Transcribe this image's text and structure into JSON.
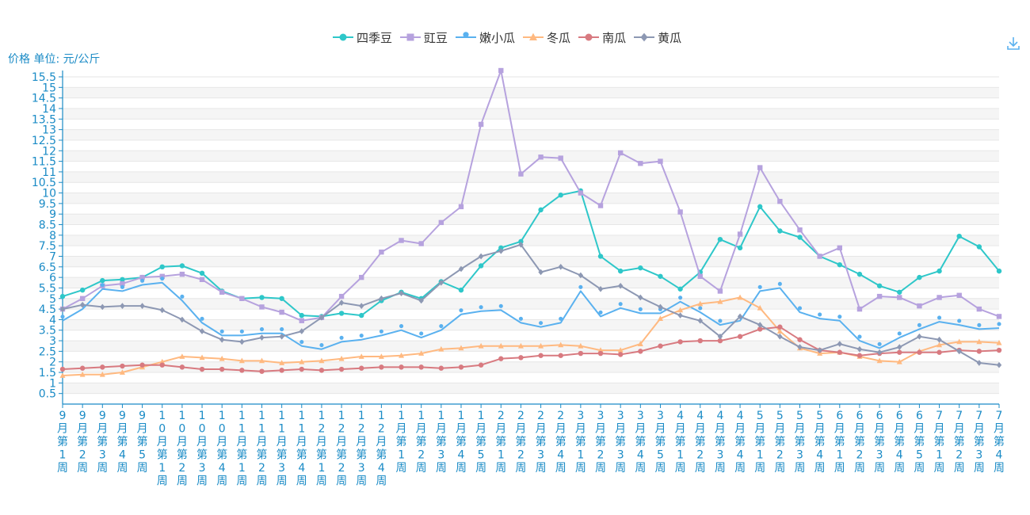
{
  "unit_label": "价格 单位: 元/公斤",
  "toolbox": {
    "save_icon": "download-icon"
  },
  "chart_data": {
    "type": "line",
    "categories": [
      "9月第1周",
      "9月第2周",
      "9月第3周",
      "9月第4周",
      "9月第5周",
      "10月第1周",
      "10月第2周",
      "10月第3周",
      "10月第4周",
      "11月第1周",
      "11月第2周",
      "11月第3周",
      "11月第4周",
      "12月第1周",
      "12月第2周",
      "12月第3周",
      "12月第4周",
      "1月第1周",
      "1月第2周",
      "1月第3周",
      "1月第4周",
      "1月第5周",
      "2月第1周",
      "2月第2周",
      "2月第3周",
      "2月第4周",
      "3月第1周",
      "3月第2周",
      "3月第3周",
      "3月第4周",
      "3月第5周",
      "4月第1周",
      "4月第2周",
      "4月第3周",
      "4月第4周",
      "5月第1周",
      "5月第2周",
      "5月第3周",
      "5月第4周",
      "6月第1周",
      "6月第2周",
      "6月第3周",
      "6月第4周",
      "6月第5周",
      "7月第1周",
      "7月第2周",
      "7月第3周",
      "7月第4周"
    ],
    "xlabels": [
      [
        "9",
        "月",
        "第",
        "1",
        "周"
      ],
      [
        "9",
        "月",
        "第",
        "2",
        "周"
      ],
      [
        "9",
        "月",
        "第",
        "3",
        "周"
      ],
      [
        "9",
        "月",
        "第",
        "4",
        "周"
      ],
      [
        "9",
        "月",
        "第",
        "5",
        "周"
      ],
      [
        "1",
        "0",
        "月",
        "第",
        "1",
        "周"
      ],
      [
        "1",
        "0",
        "月",
        "第",
        "2",
        "周"
      ],
      [
        "1",
        "0",
        "月",
        "第",
        "3",
        "周"
      ],
      [
        "1",
        "0",
        "月",
        "第",
        "4",
        "周"
      ],
      [
        "1",
        "1",
        "月",
        "第",
        "1",
        "周"
      ],
      [
        "1",
        "1",
        "月",
        "第",
        "2",
        "周"
      ],
      [
        "1",
        "1",
        "月",
        "第",
        "3",
        "周"
      ],
      [
        "1",
        "1",
        "月",
        "第",
        "4",
        "周"
      ],
      [
        "1",
        "2",
        "月",
        "第",
        "1",
        "周"
      ],
      [
        "1",
        "2",
        "月",
        "第",
        "2",
        "周"
      ],
      [
        "1",
        "2",
        "月",
        "第",
        "3",
        "周"
      ],
      [
        "1",
        "2",
        "月",
        "第",
        "4",
        "周"
      ],
      [
        "1",
        "月",
        "第",
        "1",
        "周"
      ],
      [
        "1",
        "月",
        "第",
        "2",
        "周"
      ],
      [
        "1",
        "月",
        "第",
        "3",
        "周"
      ],
      [
        "1",
        "月",
        "第",
        "4",
        "周"
      ],
      [
        "1",
        "月",
        "第",
        "5",
        "周"
      ],
      [
        "2",
        "月",
        "第",
        "1",
        "周"
      ],
      [
        "2",
        "月",
        "第",
        "2",
        "周"
      ],
      [
        "2",
        "月",
        "第",
        "3",
        "周"
      ],
      [
        "2",
        "月",
        "第",
        "4",
        "周"
      ],
      [
        "3",
        "月",
        "第",
        "1",
        "周"
      ],
      [
        "3",
        "月",
        "第",
        "2",
        "周"
      ],
      [
        "3",
        "月",
        "第",
        "3",
        "周"
      ],
      [
        "3",
        "月",
        "第",
        "4",
        "周"
      ],
      [
        "3",
        "月",
        "第",
        "5",
        "周"
      ],
      [
        "4",
        "月",
        "第",
        "1",
        "周"
      ],
      [
        "4",
        "月",
        "第",
        "2",
        "周"
      ],
      [
        "4",
        "月",
        "第",
        "3",
        "周"
      ],
      [
        "4",
        "月",
        "第",
        "4",
        "周"
      ],
      [
        "5",
        "月",
        "第",
        "1",
        "周"
      ],
      [
        "5",
        "月",
        "第",
        "2",
        "周"
      ],
      [
        "5",
        "月",
        "第",
        "3",
        "周"
      ],
      [
        "5",
        "月",
        "第",
        "4",
        "周"
      ],
      [
        "6",
        "月",
        "第",
        "1",
        "周"
      ],
      [
        "6",
        "月",
        "第",
        "2",
        "周"
      ],
      [
        "6",
        "月",
        "第",
        "3",
        "周"
      ],
      [
        "6",
        "月",
        "第",
        "4",
        "周"
      ],
      [
        "6",
        "月",
        "第",
        "5",
        "周"
      ],
      [
        "7",
        "月",
        "第",
        "1",
        "周"
      ],
      [
        "7",
        "月",
        "第",
        "2",
        "周"
      ],
      [
        "7",
        "月",
        "第",
        "3",
        "周"
      ],
      [
        "7",
        "月",
        "第",
        "4",
        "周"
      ]
    ],
    "ylim": [
      0,
      15.5
    ],
    "yticks": [
      "0.5",
      "1",
      "1.5",
      "2",
      "2.5",
      "3",
      "3.5",
      "4",
      "4.5",
      "5",
      "5.5",
      "6",
      "6.5",
      "7",
      "7.5",
      "8",
      "8.5",
      "9",
      "9.5",
      "10",
      "10.5",
      "11",
      "11.5",
      "12",
      "12.5",
      "13",
      "13.5",
      "14",
      "14.5",
      "15",
      "15.5"
    ],
    "grid": true,
    "legend_position": "top",
    "series": [
      {
        "name": "四季豆",
        "color": "#2ec7c9",
        "symbol": "circle",
        "values": [
          5.1,
          5.4,
          5.85,
          5.9,
          6.0,
          6.5,
          6.55,
          6.2,
          5.35,
          5.0,
          5.05,
          5.0,
          4.2,
          4.15,
          4.3,
          4.2,
          4.9,
          5.3,
          5.0,
          5.8,
          5.4,
          6.55,
          7.4,
          7.7,
          9.2,
          9.9,
          10.1,
          7.0,
          6.3,
          6.45,
          6.05,
          5.45,
          6.25,
          7.8,
          7.4,
          9.35,
          8.2,
          7.9,
          7.0,
          6.6,
          6.15,
          5.6,
          5.3,
          6.0,
          6.3,
          7.95,
          7.45,
          6.3
        ]
      },
      {
        "name": "豇豆",
        "color": "#b6a2de",
        "symbol": "rect",
        "values": [
          4.5,
          5.0,
          5.6,
          5.7,
          6.0,
          6.05,
          6.15,
          5.9,
          5.3,
          5.0,
          4.6,
          4.35,
          3.95,
          4.1,
          5.1,
          6.0,
          7.2,
          7.75,
          7.6,
          8.6,
          9.35,
          13.25,
          15.8,
          10.9,
          11.7,
          11.65,
          10.0,
          9.4,
          11.9,
          11.4,
          11.5,
          9.1,
          6.05,
          5.35,
          8.05,
          11.2,
          9.6,
          8.25,
          7.0,
          7.4,
          4.5,
          5.1,
          5.05,
          4.65,
          5.05,
          5.15,
          4.5,
          4.15
        ]
      },
      {
        "name": "嫩小瓜",
        "color": "#5ab1ef",
        "symbol": "pin",
        "values": [
          3.95,
          4.5,
          5.45,
          5.35,
          5.65,
          5.75,
          4.9,
          3.85,
          3.25,
          3.25,
          3.35,
          3.35,
          2.75,
          2.6,
          2.95,
          3.05,
          3.25,
          3.5,
          3.15,
          3.5,
          4.25,
          4.4,
          4.45,
          3.85,
          3.65,
          3.85,
          5.35,
          4.15,
          4.55,
          4.3,
          4.3,
          4.85,
          4.35,
          3.75,
          3.95,
          5.35,
          5.5,
          4.35,
          4.05,
          3.95,
          3.0,
          2.65,
          3.15,
          3.55,
          3.9,
          3.75,
          3.55,
          3.6
        ]
      },
      {
        "name": "冬瓜",
        "color": "#ffb980",
        "symbol": "triangle",
        "values": [
          1.35,
          1.4,
          1.4,
          1.5,
          1.75,
          2.0,
          2.25,
          2.2,
          2.15,
          2.05,
          2.05,
          1.95,
          2.0,
          2.05,
          2.15,
          2.25,
          2.25,
          2.3,
          2.4,
          2.6,
          2.65,
          2.75,
          2.75,
          2.75,
          2.75,
          2.8,
          2.75,
          2.55,
          2.55,
          2.85,
          4.05,
          4.45,
          4.75,
          4.85,
          5.05,
          4.55,
          3.45,
          2.65,
          2.4,
          2.45,
          2.25,
          2.05,
          2.0,
          2.5,
          2.8,
          2.95,
          2.95,
          2.9
        ]
      },
      {
        "name": "南瓜",
        "color": "#d87a80",
        "symbol": "circle",
        "values": [
          1.65,
          1.7,
          1.75,
          1.8,
          1.85,
          1.85,
          1.75,
          1.65,
          1.65,
          1.6,
          1.55,
          1.6,
          1.65,
          1.6,
          1.65,
          1.7,
          1.75,
          1.75,
          1.75,
          1.7,
          1.75,
          1.85,
          2.15,
          2.2,
          2.3,
          2.3,
          2.4,
          2.4,
          2.35,
          2.5,
          2.75,
          2.95,
          3.0,
          3.0,
          3.2,
          3.55,
          3.65,
          3.05,
          2.55,
          2.45,
          2.3,
          2.4,
          2.45,
          2.45,
          2.45,
          2.55,
          2.5,
          2.55
        ]
      },
      {
        "name": "黄瓜",
        "color": "#8d98b3",
        "symbol": "diamond",
        "values": [
          4.5,
          4.7,
          4.6,
          4.65,
          4.65,
          4.45,
          4.0,
          3.45,
          3.05,
          2.95,
          3.15,
          3.2,
          3.45,
          4.1,
          4.8,
          4.65,
          5.0,
          5.25,
          4.9,
          5.75,
          6.4,
          7.0,
          7.25,
          7.55,
          6.25,
          6.5,
          6.1,
          5.45,
          5.6,
          5.05,
          4.6,
          4.2,
          3.95,
          3.2,
          4.15,
          3.75,
          3.2,
          2.7,
          2.55,
          2.85,
          2.6,
          2.45,
          2.7,
          3.2,
          3.05,
          2.5,
          1.95,
          1.85
        ]
      }
    ]
  }
}
